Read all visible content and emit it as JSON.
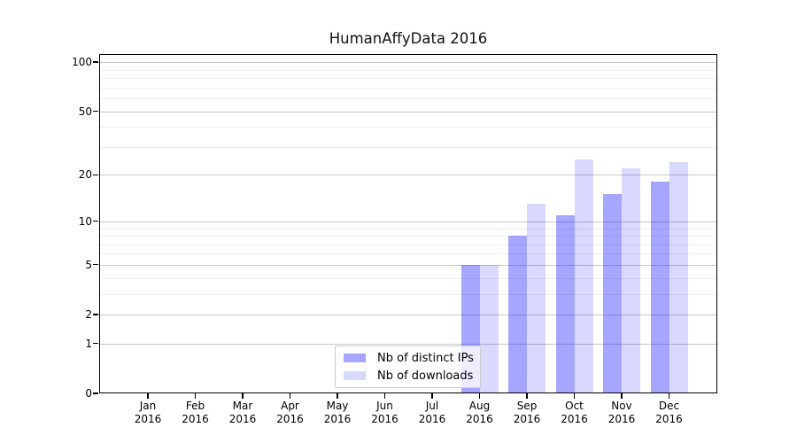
{
  "title": "HumanAffyData 2016",
  "colors": {
    "distinct_ips_bar": "rgba(0,0,255,0.35)",
    "downloads_bar": "rgba(0,0,255,0.15)",
    "major_grid": "#c8c8c8",
    "minor_grid": "#efefef",
    "frame": "#000000",
    "legend_border": "#cccccc",
    "legend_background": "rgba(255,255,255,0.8)",
    "text": "#000000"
  },
  "legend": {
    "items": [
      {
        "label": "Nb of distinct IPs",
        "color_key": "distinct_ips_bar"
      },
      {
        "label": "Nb of downloads",
        "color_key": "downloads_bar"
      }
    ]
  },
  "chart_data": {
    "type": "bar",
    "title": "HumanAffyData 2016",
    "categories": [
      "Jan 2016",
      "Feb 2016",
      "Mar 2016",
      "Apr 2016",
      "May 2016",
      "Jun 2016",
      "Jul 2016",
      "Aug 2016",
      "Sep 2016",
      "Oct 2016",
      "Nov 2016",
      "Dec 2016"
    ],
    "months": [
      "Jan",
      "Feb",
      "Mar",
      "Apr",
      "May",
      "Jun",
      "Jul",
      "Aug",
      "Sep",
      "Oct",
      "Nov",
      "Dec"
    ],
    "year": "2016",
    "series": [
      {
        "name": "Nb of distinct IPs",
        "values": [
          0,
          0,
          0,
          0,
          0,
          0,
          0,
          5,
          8,
          11,
          15,
          18
        ]
      },
      {
        "name": "Nb of downloads",
        "values": [
          0,
          0,
          0,
          0,
          0,
          0,
          0,
          5,
          13,
          25,
          22,
          24
        ]
      }
    ],
    "xlabel": "",
    "ylabel": "",
    "y_scale": "log1p",
    "ylim": [
      0,
      112
    ],
    "y_ticks_major": [
      0,
      1,
      2,
      5,
      10,
      20,
      50,
      100
    ],
    "y_ticks_minor": [
      3,
      4,
      6,
      7,
      8,
      9,
      30,
      40,
      60,
      70,
      80,
      90
    ],
    "grid": true,
    "legend_position": "lower center"
  }
}
